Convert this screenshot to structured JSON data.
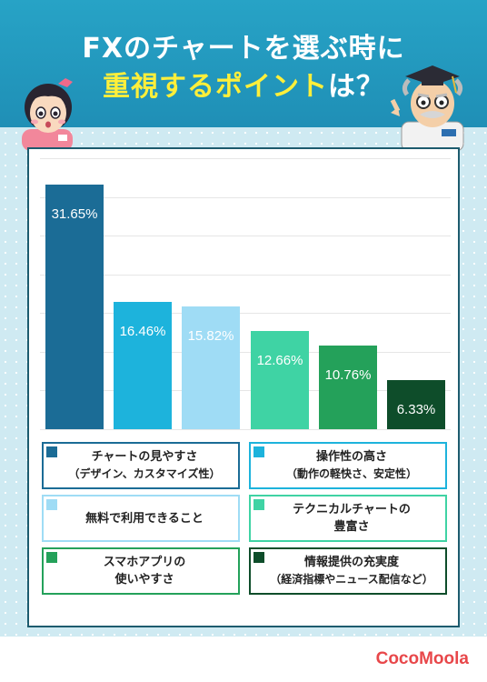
{
  "title": {
    "line1": "FXのチャートを選ぶ時に",
    "line2_highlight": "重視するポイント",
    "line2_rest": "は？"
  },
  "chart_data": {
    "type": "bar",
    "categories": [
      "チャートの見やすさ（デザイン、カスタマイズ性）",
      "操作性の高さ（動作の軽快さ、安定性）",
      "無料で利用できること",
      "テクニカルチャートの豊富さ",
      "スマホアプリの使いやすさ",
      "情報提供の充実度（経済指標やニュース配信など）"
    ],
    "values": [
      31.65,
      16.46,
      15.82,
      12.66,
      10.76,
      6.33
    ],
    "value_labels": [
      "31.65%",
      "16.46%",
      "15.82%",
      "12.66%",
      "10.76%",
      "6.33%"
    ],
    "colors": [
      "#1b6c96",
      "#1db3dc",
      "#9fdcf5",
      "#3fd3a4",
      "#24a15a",
      "#0e4d2a"
    ],
    "ylim": [
      0,
      35
    ],
    "grid": true,
    "legend": "bottom"
  },
  "legend": [
    {
      "line1": "チャートの見やすさ",
      "line2": "（デザイン、カスタマイズ性）",
      "color": "#1b6c96"
    },
    {
      "line1": "操作性の高さ",
      "line2": "（動作の軽快さ、安定性）",
      "color": "#1db3dc"
    },
    {
      "line1": "無料で利用できること",
      "line2": "",
      "color": "#9fdcf5"
    },
    {
      "line1": "テクニカルチャートの",
      "line2": "豊富さ",
      "color": "#3fd3a4"
    },
    {
      "line1": "スマホアプリの",
      "line2": "使いやすさ",
      "color": "#24a15a"
    },
    {
      "line1": "情報提供の充実度",
      "line2": "（経済指標やニュース配信など）",
      "color": "#0e4d2a"
    }
  ],
  "brand": "CocoMoola"
}
